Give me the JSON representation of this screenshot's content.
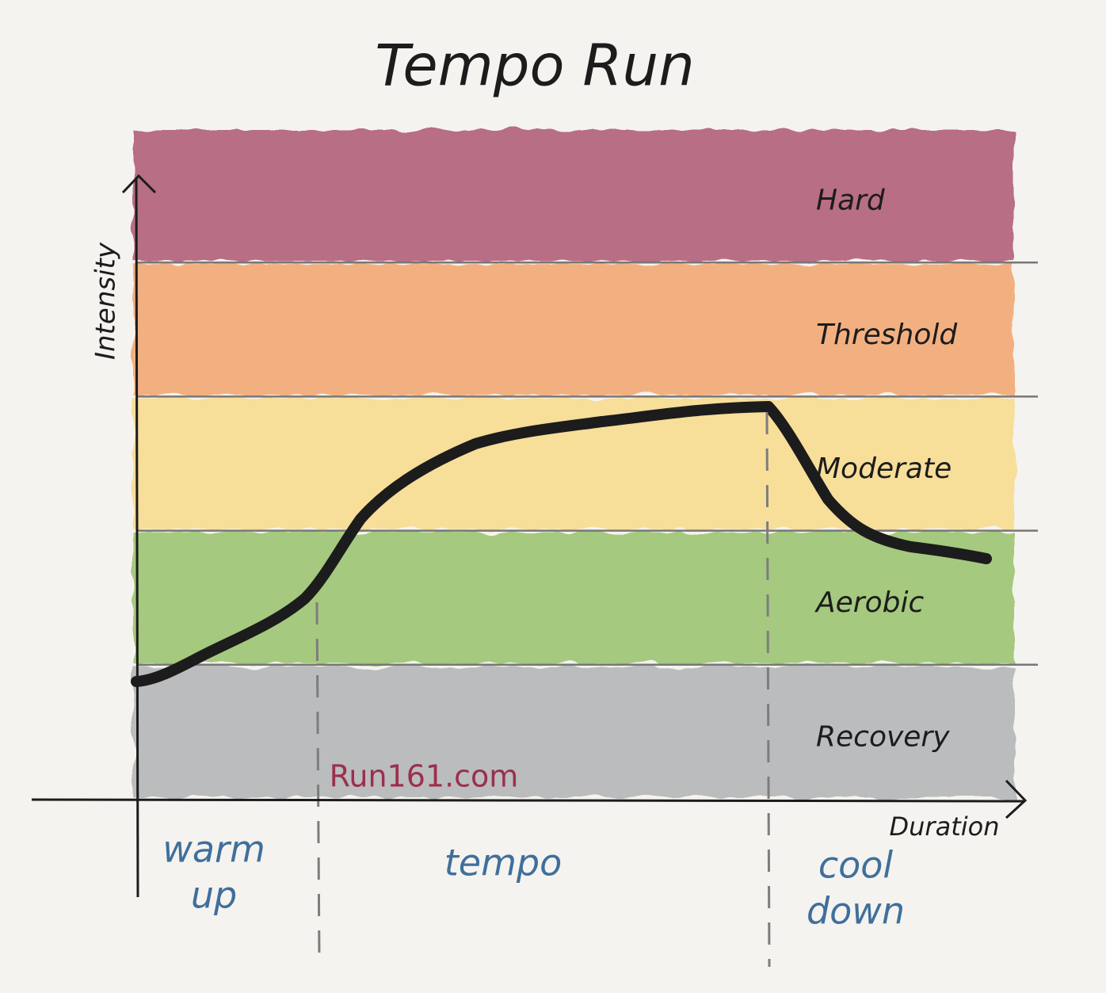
{
  "title": "Tempo Run",
  "y_axis_label": "Intensity",
  "x_axis_label": "Duration",
  "zones": [
    {
      "label": "Hard",
      "color": "#b3647c"
    },
    {
      "label": "Threshold",
      "color": "#f2ab78"
    },
    {
      "label": "Moderate",
      "color": "#f8dd92"
    },
    {
      "label": "Aerobic",
      "color": "#9fc674"
    },
    {
      "label": "Recovery",
      "color": "#b5b8b9"
    }
  ],
  "phases": [
    {
      "lines": [
        "warm",
        "up"
      ]
    },
    {
      "lines": [
        "tempo"
      ]
    },
    {
      "lines": [
        "cool",
        "down"
      ]
    }
  ],
  "watermark": "Run161.com"
}
